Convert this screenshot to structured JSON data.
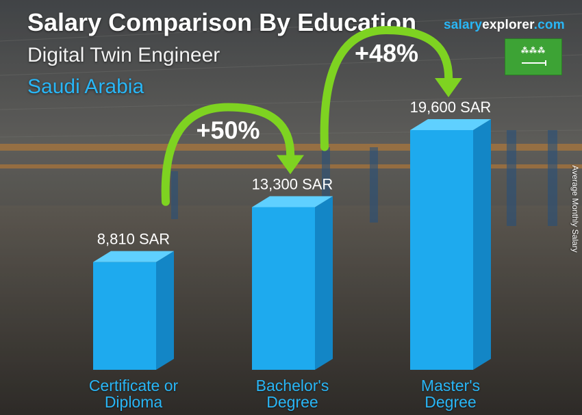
{
  "header": {
    "title": "Salary Comparison By Education",
    "subtitle": "Digital Twin Engineer",
    "country": "Saudi Arabia"
  },
  "brand": {
    "part1": "salary",
    "part2": "explorer",
    "part3": ".com"
  },
  "flag": {
    "icon": "saudi-arabia-flag-icon",
    "color": "#3da335"
  },
  "colors": {
    "bar_front": "#1eaaee",
    "bar_side": "#1386c6",
    "bar_top": "#5fd0ff",
    "accent": "#29b6f6",
    "arrow": "#7ed321"
  },
  "chart_data": {
    "type": "bar",
    "title": "Salary Comparison By Education",
    "ylabel": "Average Monthly Salary",
    "categories": [
      "Certificate or Diploma",
      "Bachelor's Degree",
      "Master's Degree"
    ],
    "category_lines": [
      [
        "Certificate or",
        "Diploma"
      ],
      [
        "Bachelor's",
        "Degree"
      ],
      [
        "Master's",
        "Degree"
      ]
    ],
    "values": [
      8810,
      13300,
      19600
    ],
    "value_labels": [
      "8,810 SAR",
      "13,300 SAR",
      "19,600 SAR"
    ],
    "unit": "SAR",
    "increases": [
      {
        "from": 0,
        "to": 1,
        "label": "+50%"
      },
      {
        "from": 1,
        "to": 2,
        "label": "+48%"
      }
    ]
  }
}
